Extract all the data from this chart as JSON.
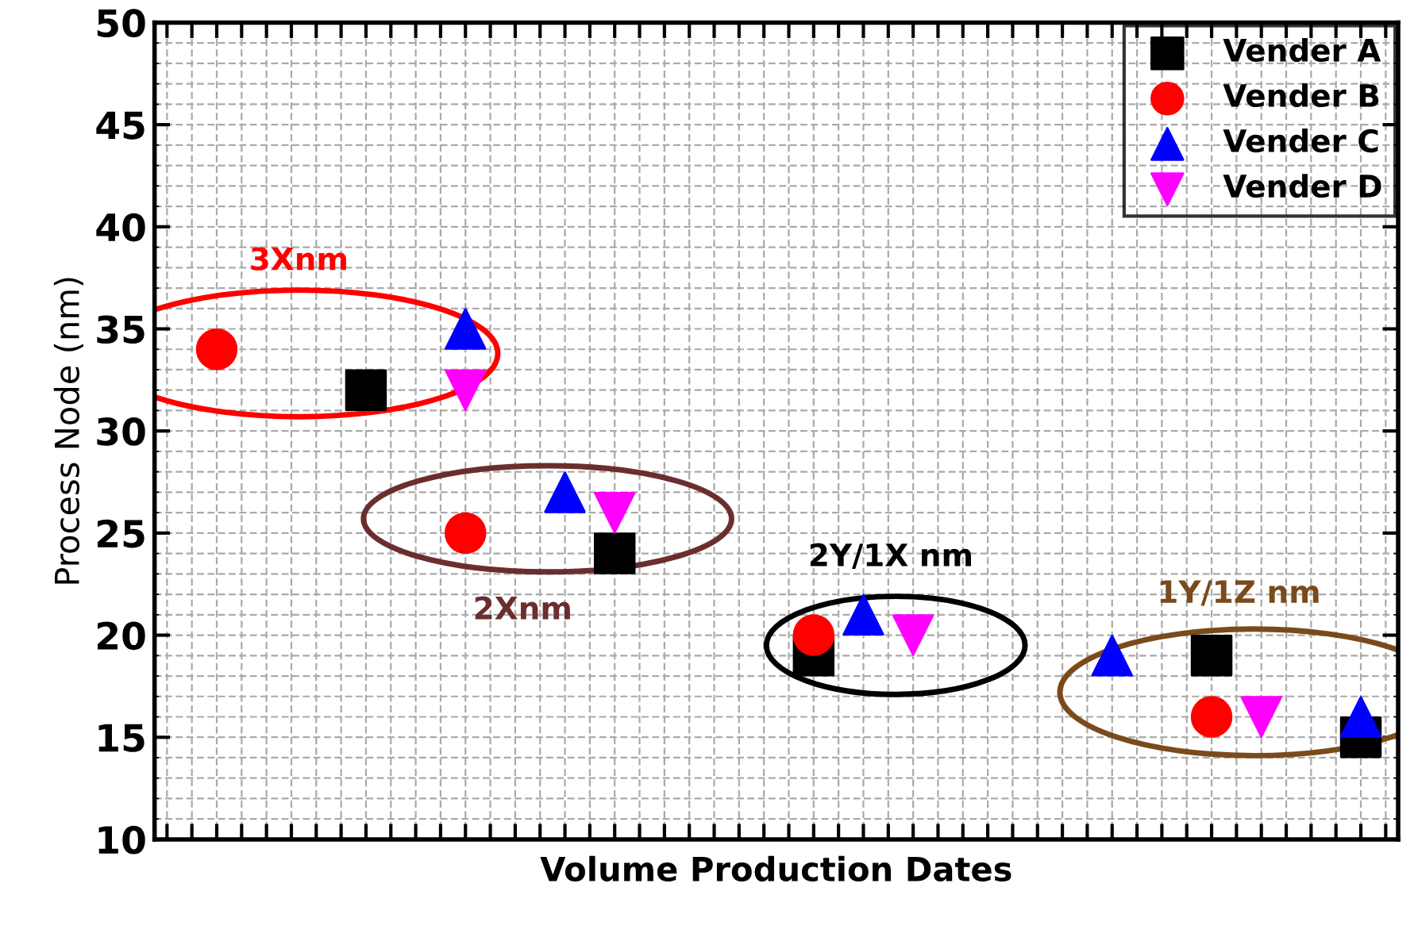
{
  "chart_data": {
    "type": "scatter",
    "xlabel": "Volume Production Dates",
    "ylabel": "Process Node (nm)",
    "categories": [
      null,
      null,
      null,
      null,
      null,
      null,
      null,
      null,
      null,
      null,
      null,
      null,
      null,
      null,
      null,
      null,
      null,
      null,
      null,
      null,
      null,
      null,
      null,
      null,
      null,
      null,
      null,
      null,
      null,
      null,
      null,
      null,
      null,
      null,
      null,
      null,
      null,
      null,
      null,
      null,
      null,
      null,
      null,
      null,
      null,
      null,
      null,
      null,
      null,
      null
    ],
    "ylim": [
      10,
      50
    ],
    "yticks": [
      10,
      15,
      20,
      25,
      30,
      35,
      40,
      45,
      50
    ],
    "grid": true,
    "legend": "top right",
    "series": [
      {
        "name": "Vender A",
        "color": "#000000",
        "marker": "square",
        "values": [
          null,
          null,
          null,
          null,
          null,
          null,
          null,
          null,
          32,
          null,
          null,
          null,
          null,
          null,
          null,
          null,
          null,
          null,
          24,
          null,
          null,
          null,
          null,
          null,
          null,
          null,
          19,
          null,
          null,
          null,
          null,
          null,
          null,
          null,
          null,
          null,
          null,
          null,
          null,
          null,
          null,
          null,
          19,
          null,
          null,
          null,
          null,
          null,
          15,
          null
        ]
      },
      {
        "name": "Vender B",
        "color": "#ff0000",
        "marker": "circle",
        "values": [
          null,
          null,
          34,
          null,
          null,
          null,
          null,
          null,
          null,
          null,
          null,
          null,
          25,
          null,
          null,
          null,
          null,
          null,
          null,
          null,
          null,
          null,
          null,
          null,
          null,
          null,
          20,
          null,
          null,
          null,
          null,
          null,
          null,
          null,
          null,
          null,
          null,
          null,
          null,
          null,
          null,
          null,
          16,
          null,
          null,
          null,
          null,
          null,
          null,
          null
        ]
      },
      {
        "name": "Vender C",
        "color": "#0000ff",
        "marker": "triangle",
        "values": [
          null,
          null,
          null,
          null,
          null,
          null,
          null,
          null,
          null,
          null,
          null,
          null,
          35,
          null,
          null,
          null,
          27,
          null,
          null,
          null,
          null,
          null,
          null,
          null,
          null,
          null,
          null,
          null,
          21,
          null,
          null,
          null,
          null,
          null,
          null,
          null,
          null,
          null,
          19,
          null,
          null,
          null,
          null,
          null,
          null,
          null,
          null,
          null,
          16,
          null
        ]
      },
      {
        "name": "Vender D",
        "color": "#ff00ff",
        "marker": "triangle_down",
        "values": [
          null,
          null,
          null,
          null,
          null,
          null,
          null,
          null,
          null,
          null,
          null,
          null,
          32,
          null,
          null,
          null,
          null,
          null,
          26,
          null,
          null,
          null,
          null,
          null,
          null,
          null,
          null,
          null,
          null,
          null,
          20,
          null,
          null,
          null,
          null,
          null,
          null,
          null,
          null,
          null,
          null,
          null,
          null,
          null,
          16,
          null,
          null,
          null,
          null,
          null
        ]
      }
    ],
    "annotations": [
      "3Xnm",
      "2Xnm",
      "2Y/1X nm",
      "1Y/1Z nm"
    ]
  }
}
